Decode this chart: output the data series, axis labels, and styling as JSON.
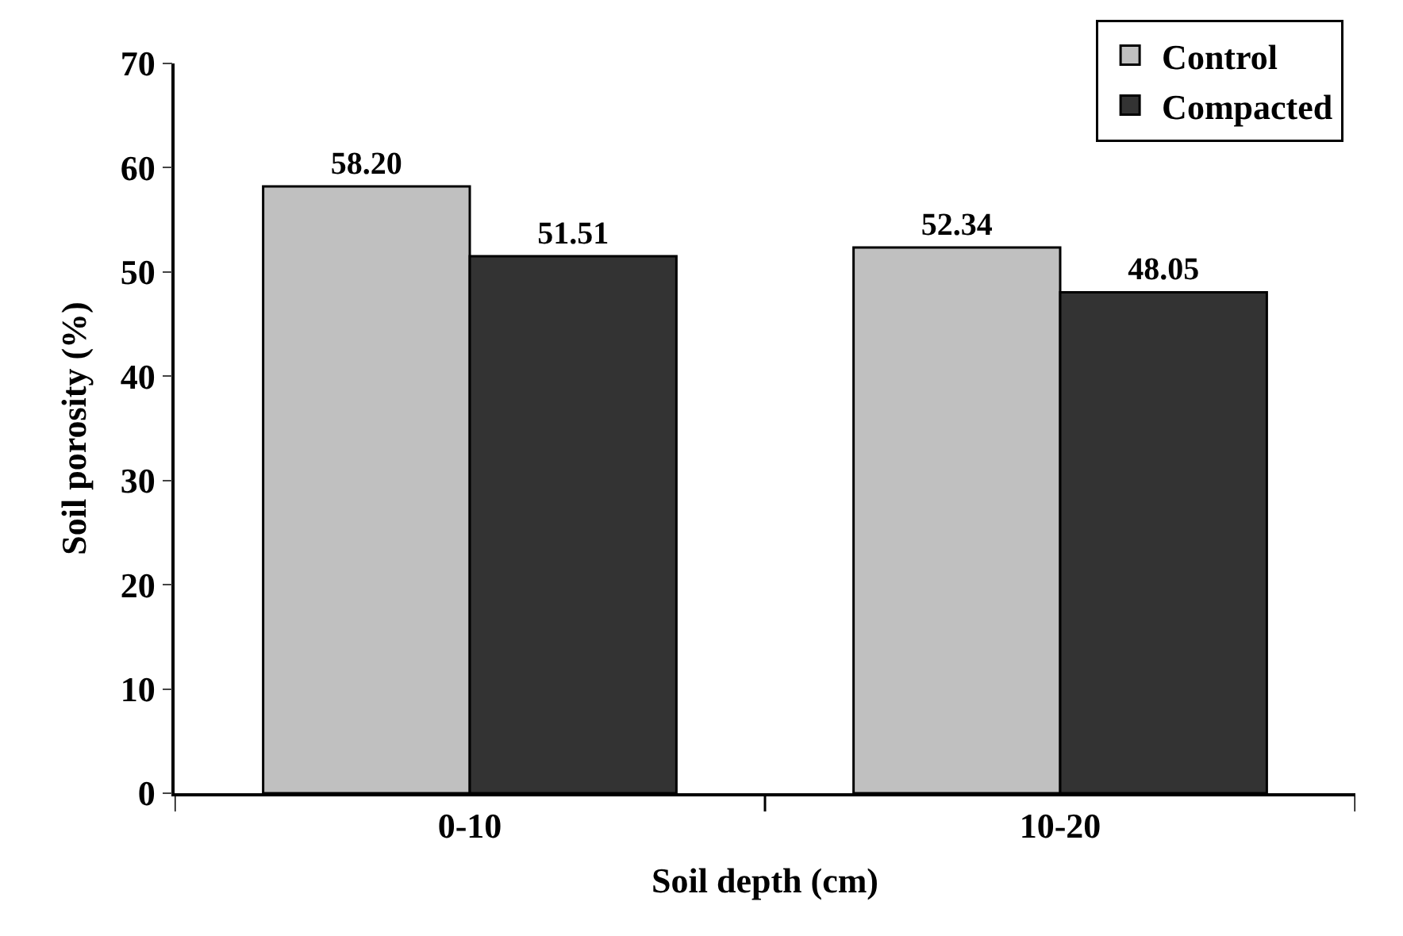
{
  "chart_data": {
    "type": "bar",
    "xlabel": "Soil depth (cm)",
    "ylabel": "Soil porosity (%)",
    "categories": [
      "0-10",
      "10-20"
    ],
    "series": [
      {
        "name": "Control",
        "color": "#c0c0c0",
        "values": [
          58.2,
          52.34
        ],
        "value_labels": [
          "58.20",
          "52.34"
        ]
      },
      {
        "name": "Compacted",
        "color": "#333333",
        "values": [
          51.51,
          48.05
        ],
        "value_labels": [
          "51.51",
          "48.05"
        ]
      }
    ],
    "ylim": [
      0,
      70
    ],
    "yticks": [
      0,
      10,
      20,
      30,
      40,
      50,
      60,
      70
    ],
    "legend": "top right"
  }
}
